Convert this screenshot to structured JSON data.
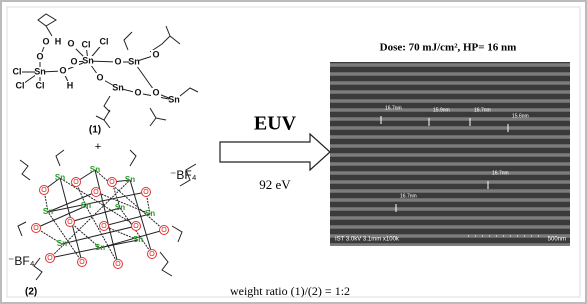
{
  "figure": {
    "molecule_1": {
      "atoms": [
        "O",
        "H",
        "O",
        "Cl",
        "Cl",
        "O",
        "Sn",
        "Cl",
        "Sn",
        "O",
        "O",
        "Sn",
        "O",
        "Cl",
        "Cl",
        "H",
        "Sn",
        "O",
        "O",
        "O",
        "Sn",
        "O"
      ],
      "label": "(1)"
    },
    "plus": "+",
    "cluster_2": {
      "sn_atoms": [
        "Sn",
        "Sn",
        "Sn",
        "Sn",
        "Sn",
        "Sn",
        "Sn",
        "Sn",
        "Sn",
        "Sn"
      ],
      "o_atoms": [
        "O",
        "O",
        "O",
        "O",
        "O",
        "O",
        "O",
        "O",
        "O",
        "O",
        "O",
        "O",
        "O",
        "O"
      ],
      "counterions": [
        "⁻BF₄",
        "⁻BF₄"
      ],
      "label": "(2)"
    },
    "arrow": {
      "label": "EUV",
      "energy": "92 eV"
    },
    "sem": {
      "title": "Dose: 70 mJ/cm², HP= 16 nm",
      "measurements": [
        "16.7nm",
        "15.9nm",
        "16.7nm",
        "15.6nm",
        "16.7nm",
        "16.7nm"
      ],
      "info": "IST 3.0kV 3.1mm x100k",
      "scale": "500nm"
    },
    "caption": "weight ratio (1)/(2) = 1:2"
  }
}
